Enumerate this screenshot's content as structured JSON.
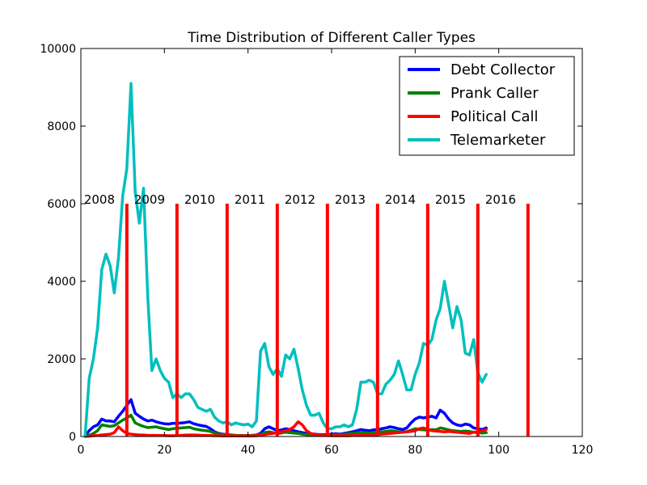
{
  "chart_data": {
    "type": "line",
    "title": "Time Distribution of Different Caller Types",
    "xlabel": "",
    "ylabel": "",
    "xlim": [
      0,
      120
    ],
    "ylim": [
      0,
      10000
    ],
    "xticks": [
      0,
      20,
      40,
      60,
      80,
      100,
      120
    ],
    "yticks": [
      0,
      2000,
      4000,
      6000,
      8000,
      10000
    ],
    "grid": false,
    "legend_position": "top-right",
    "series": [
      {
        "name": "Debt Collector",
        "color": "#0000ff",
        "x": [
          1,
          2,
          3,
          4,
          5,
          6,
          7,
          8,
          9,
          10,
          11,
          12,
          13,
          14,
          15,
          16,
          17,
          18,
          19,
          20,
          21,
          22,
          23,
          24,
          25,
          26,
          27,
          28,
          29,
          30,
          31,
          32,
          33,
          34,
          35,
          36,
          37,
          38,
          39,
          40,
          41,
          42,
          43,
          44,
          45,
          46,
          47,
          48,
          49,
          50,
          51,
          52,
          53,
          54,
          55,
          56,
          57,
          58,
          59,
          60,
          61,
          62,
          63,
          64,
          65,
          66,
          67,
          68,
          69,
          70,
          71,
          72,
          73,
          74,
          75,
          76,
          77,
          78,
          79,
          80,
          81,
          82,
          83,
          84,
          85,
          86,
          87,
          88,
          89,
          90,
          91,
          92,
          93,
          94,
          95,
          96,
          97
        ],
        "y": [
          0,
          150,
          250,
          300,
          450,
          400,
          400,
          380,
          520,
          650,
          800,
          950,
          600,
          520,
          450,
          400,
          420,
          380,
          350,
          330,
          320,
          340,
          340,
          350,
          360,
          380,
          330,
          300,
          280,
          260,
          200,
          120,
          80,
          60,
          50,
          40,
          30,
          25,
          20,
          25,
          30,
          40,
          80,
          200,
          250,
          200,
          150,
          170,
          200,
          180,
          150,
          120,
          100,
          80,
          70,
          60,
          50,
          45,
          50,
          60,
          70,
          60,
          80,
          100,
          120,
          150,
          180,
          160,
          150,
          170,
          180,
          200,
          220,
          250,
          230,
          200,
          180,
          220,
          350,
          450,
          500,
          480,
          500,
          520,
          480,
          680,
          600,
          450,
          350,
          300,
          280,
          320,
          300,
          220,
          200,
          180,
          220
        ]
      },
      {
        "name": "Prank Caller",
        "color": "#008000",
        "x": [
          1,
          2,
          3,
          4,
          5,
          6,
          7,
          8,
          9,
          10,
          11,
          12,
          13,
          14,
          15,
          16,
          17,
          18,
          19,
          20,
          21,
          22,
          23,
          24,
          25,
          26,
          27,
          28,
          29,
          30,
          31,
          32,
          33,
          34,
          35,
          36,
          37,
          38,
          39,
          40,
          41,
          42,
          43,
          44,
          45,
          46,
          47,
          48,
          49,
          50,
          51,
          52,
          53,
          54,
          55,
          56,
          57,
          58,
          59,
          60,
          61,
          62,
          63,
          64,
          65,
          66,
          67,
          68,
          69,
          70,
          71,
          72,
          73,
          74,
          75,
          76,
          77,
          78,
          79,
          80,
          81,
          82,
          83,
          84,
          85,
          86,
          87,
          88,
          89,
          90,
          91,
          92,
          93,
          94,
          95,
          96,
          97
        ],
        "y": [
          0,
          30,
          80,
          150,
          300,
          280,
          260,
          280,
          350,
          420,
          480,
          550,
          350,
          300,
          260,
          230,
          240,
          250,
          220,
          200,
          180,
          200,
          210,
          220,
          230,
          240,
          200,
          180,
          160,
          150,
          130,
          90,
          60,
          50,
          40,
          35,
          30,
          25,
          20,
          25,
          30,
          35,
          50,
          100,
          120,
          100,
          80,
          90,
          110,
          100,
          90,
          80,
          60,
          50,
          45,
          40,
          35,
          30,
          35,
          40,
          50,
          45,
          55,
          70,
          80,
          90,
          100,
          95,
          90,
          100,
          110,
          120,
          130,
          150,
          140,
          120,
          110,
          130,
          160,
          200,
          180,
          170,
          160,
          180,
          170,
          220,
          200,
          170,
          150,
          140,
          130,
          140,
          130,
          110,
          100,
          90,
          100
        ]
      },
      {
        "name": "Political Call",
        "color": "#ff0000",
        "x": [
          1,
          2,
          3,
          4,
          5,
          6,
          7,
          8,
          9,
          10,
          11,
          12,
          13,
          14,
          15,
          16,
          17,
          18,
          19,
          20,
          21,
          22,
          23,
          24,
          25,
          26,
          27,
          28,
          29,
          30,
          31,
          32,
          33,
          34,
          35,
          36,
          37,
          38,
          39,
          40,
          41,
          42,
          43,
          44,
          45,
          46,
          47,
          48,
          49,
          50,
          51,
          52,
          53,
          54,
          55,
          56,
          57,
          58,
          59,
          60,
          61,
          62,
          63,
          64,
          65,
          66,
          67,
          68,
          69,
          70,
          71,
          72,
          73,
          74,
          75,
          76,
          77,
          78,
          79,
          80,
          81,
          82,
          83,
          84,
          85,
          86,
          87,
          88,
          89,
          90,
          91,
          92,
          93,
          94,
          95,
          96,
          97
        ],
        "y": [
          0,
          10,
          20,
          30,
          40,
          50,
          60,
          100,
          250,
          150,
          80,
          60,
          50,
          40,
          40,
          30,
          30,
          30,
          25,
          25,
          20,
          20,
          25,
          30,
          35,
          40,
          40,
          35,
          30,
          30,
          25,
          20,
          20,
          15,
          15,
          15,
          15,
          15,
          15,
          15,
          15,
          20,
          30,
          50,
          70,
          80,
          100,
          120,
          150,
          180,
          250,
          380,
          300,
          150,
          80,
          50,
          40,
          30,
          25,
          20,
          20,
          20,
          20,
          20,
          25,
          30,
          35,
          40,
          40,
          45,
          50,
          60,
          70,
          80,
          90,
          100,
          110,
          120,
          130,
          150,
          200,
          220,
          180,
          150,
          140,
          130,
          120,
          130,
          120,
          110,
          100,
          90,
          80,
          110,
          120,
          150,
          180
        ]
      },
      {
        "name": "Telemarketer",
        "color": "#00bfbf",
        "x": [
          1,
          2,
          3,
          4,
          5,
          6,
          7,
          8,
          9,
          10,
          11,
          12,
          13,
          14,
          15,
          16,
          17,
          18,
          19,
          20,
          21,
          22,
          23,
          24,
          25,
          26,
          27,
          28,
          29,
          30,
          31,
          32,
          33,
          34,
          35,
          36,
          37,
          38,
          39,
          40,
          41,
          42,
          43,
          44,
          45,
          46,
          47,
          48,
          49,
          50,
          51,
          52,
          53,
          54,
          55,
          56,
          57,
          58,
          59,
          60,
          61,
          62,
          63,
          64,
          65,
          66,
          67,
          68,
          69,
          70,
          71,
          72,
          73,
          74,
          75,
          76,
          77,
          78,
          79,
          80,
          81,
          82,
          83,
          84,
          85,
          86,
          87,
          88,
          89,
          90,
          91,
          92,
          93,
          94,
          95,
          96,
          97
        ],
        "y": [
          0,
          1500,
          2000,
          2800,
          4300,
          4700,
          4400,
          3700,
          4600,
          6200,
          6900,
          9100,
          6300,
          5500,
          6400,
          3600,
          1700,
          2000,
          1700,
          1500,
          1400,
          1000,
          1100,
          1000,
          1100,
          1100,
          950,
          750,
          700,
          650,
          700,
          500,
          400,
          350,
          380,
          300,
          350,
          320,
          300,
          320,
          250,
          400,
          2200,
          2400,
          1800,
          1600,
          1750,
          1550,
          2100,
          2000,
          2250,
          1750,
          1200,
          800,
          550,
          550,
          600,
          350,
          200,
          200,
          250,
          250,
          300,
          250,
          300,
          700,
          1400,
          1400,
          1450,
          1400,
          1100,
          1100,
          1350,
          1450,
          1600,
          1950,
          1600,
          1200,
          1200,
          1600,
          1900,
          2400,
          2350,
          2500,
          3000,
          3300,
          4000,
          3400,
          2800,
          3350,
          3000,
          2150,
          2100,
          2500,
          1650,
          1400,
          1600
        ]
      }
    ],
    "annotations": [
      {
        "text": "2008",
        "x": 11
      },
      {
        "text": "2009",
        "x": 23
      },
      {
        "text": "2010",
        "x": 35
      },
      {
        "text": "2011",
        "x": 47
      },
      {
        "text": "2012",
        "x": 59
      },
      {
        "text": "2013",
        "x": 71
      },
      {
        "text": "2014",
        "x": 83
      },
      {
        "text": "2015",
        "x": 95
      },
      {
        "text": "2016",
        "x": 107
      }
    ],
    "annotation_line_color": "#ff0000",
    "annotation_line_top": 6000
  }
}
